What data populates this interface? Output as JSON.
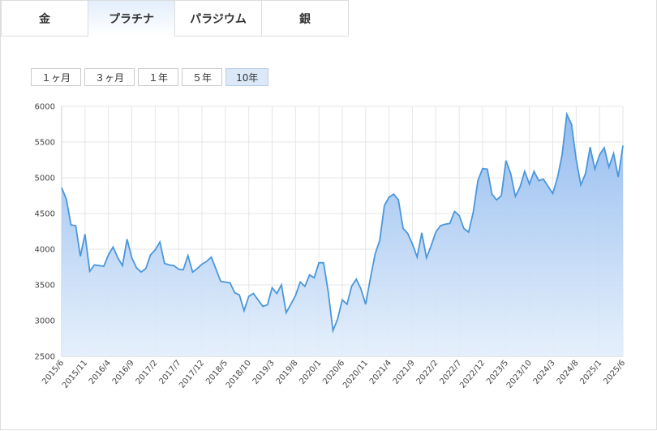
{
  "tabs": [
    {
      "label": "金",
      "selected": false
    },
    {
      "label": "プラチナ",
      "selected": true
    },
    {
      "label": "パラジウム",
      "selected": false
    },
    {
      "label": "銀",
      "selected": false
    }
  ],
  "range_buttons": [
    {
      "label": "１ヶ月",
      "selected": false
    },
    {
      "label": "３ヶ月",
      "selected": false
    },
    {
      "label": "１年",
      "selected": false
    },
    {
      "label": "５年",
      "selected": false
    },
    {
      "label": "10年",
      "selected": true
    }
  ],
  "chart_data": {
    "type": "area",
    "color": "#4a97dc",
    "grid": true,
    "ylim": [
      2500,
      6000
    ],
    "yticks": [
      2500,
      3000,
      3500,
      4000,
      4500,
      5000,
      5500,
      6000
    ],
    "categories": [
      "2015/6",
      null,
      null,
      null,
      null,
      "2015/11",
      null,
      null,
      null,
      null,
      "2016/4",
      null,
      null,
      null,
      null,
      "2016/9",
      null,
      null,
      null,
      null,
      "2017/2",
      null,
      null,
      null,
      null,
      "2017/7",
      null,
      null,
      null,
      null,
      "2017/12",
      null,
      null,
      null,
      null,
      "2018/5",
      null,
      null,
      null,
      null,
      "2018/10",
      null,
      null,
      null,
      null,
      "2019/3",
      null,
      null,
      null,
      null,
      "2019/8",
      null,
      null,
      null,
      null,
      "2020/1",
      null,
      null,
      null,
      null,
      "2020/6",
      null,
      null,
      null,
      null,
      "2020/11",
      null,
      null,
      null,
      null,
      "2021/4",
      null,
      null,
      null,
      null,
      "2021/9",
      null,
      null,
      null,
      null,
      "2022/2",
      null,
      null,
      null,
      null,
      "2022/7",
      null,
      null,
      null,
      null,
      "2022/12",
      null,
      null,
      null,
      null,
      "2023/5",
      null,
      null,
      null,
      null,
      "2023/10",
      null,
      null,
      null,
      null,
      "2024/3",
      null,
      null,
      null,
      null,
      "2024/8",
      null,
      null,
      null,
      null,
      "2025/1",
      null,
      null,
      null,
      null,
      "2025/6"
    ],
    "values": [
      4860,
      4700,
      4340,
      4330,
      3900,
      4210,
      3690,
      3780,
      3770,
      3760,
      3920,
      4030,
      3880,
      3770,
      4140,
      3880,
      3740,
      3680,
      3730,
      3920,
      3990,
      4100,
      3800,
      3780,
      3770,
      3720,
      3710,
      3910,
      3680,
      3730,
      3790,
      3830,
      3890,
      3720,
      3550,
      3540,
      3530,
      3390,
      3360,
      3140,
      3340,
      3380,
      3290,
      3200,
      3220,
      3460,
      3380,
      3500,
      3110,
      3230,
      3350,
      3540,
      3480,
      3640,
      3600,
      3810,
      3810,
      3400,
      2860,
      3020,
      3290,
      3230,
      3480,
      3580,
      3440,
      3230,
      3590,
      3930,
      4120,
      4610,
      4730,
      4770,
      4690,
      4290,
      4220,
      4070,
      3890,
      4230,
      3880,
      4050,
      4240,
      4330,
      4350,
      4360,
      4530,
      4470,
      4290,
      4240,
      4520,
      4960,
      5130,
      5120,
      4770,
      4690,
      4750,
      5240,
      5060,
      4740,
      4870,
      5090,
      4910,
      5090,
      4960,
      4980,
      4880,
      4780,
      5000,
      5320,
      5890,
      5750,
      5260,
      4900,
      5060,
      5430,
      5120,
      5320,
      5420,
      5150,
      5340,
      5010,
      5450
    ]
  }
}
